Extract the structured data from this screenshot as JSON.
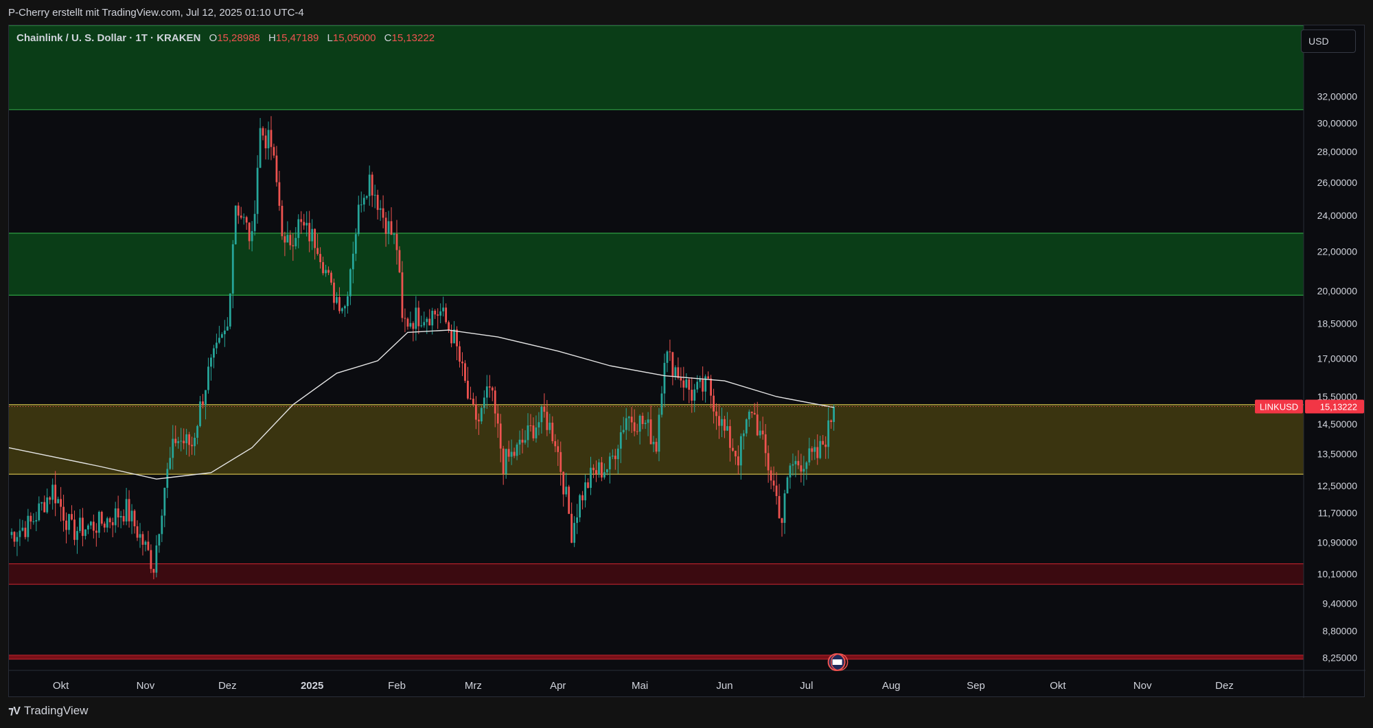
{
  "header": {
    "attribution": "P-Cherry erstellt mit TradingView.com, Jul 12, 2025 01:10 UTC-4"
  },
  "legend": {
    "symbol": "Chainlink / U. S. Dollar · 1T · KRAKEN",
    "open_label": "O",
    "open": "15,28988",
    "high_label": "H",
    "high": "15,47189",
    "low_label": "L",
    "low": "15,05000",
    "close_label": "C",
    "close": "15,13222"
  },
  "currency_button": "USD",
  "price_tag": {
    "ticker": "LINKUSD",
    "value": "15,13222"
  },
  "footer": {
    "brand": "TradingView",
    "logo_icon": "tradingview-logo-icon"
  },
  "event_icon": "us-flag-economic-event-icon",
  "colors": {
    "up": "#26a69a",
    "down": "#ef5350",
    "ma": "#e6e6e6",
    "zone_green": "#0a3d17",
    "zone_yellow": "#3a3410",
    "zone_red": "#3b0a10"
  },
  "chart_data": {
    "type": "candlestick",
    "symbol": "LINKUSD",
    "timeframe": "1T",
    "exchange": "KRAKEN",
    "y_scale": "log",
    "ylim": [
      8.0,
      38.0
    ],
    "y_ticks": [
      "32,00000",
      "30,00000",
      "28,00000",
      "26,00000",
      "24,00000",
      "22,00000",
      "20,00000",
      "18,50000",
      "17,00000",
      "15,50000",
      "14,50000",
      "13,50000",
      "12,50000",
      "11,70000",
      "10,90000",
      "10,10000",
      "9,40000",
      "8,80000",
      "8,25000"
    ],
    "y_tick_values": [
      32,
      30,
      28,
      26,
      24,
      22,
      20,
      18.5,
      17,
      15.5,
      14.5,
      13.5,
      12.5,
      11.7,
      10.9,
      10.1,
      9.4,
      8.8,
      8.25
    ],
    "x_ticks": [
      {
        "label": "Okt",
        "date": "2024-10-01"
      },
      {
        "label": "Nov",
        "date": "2024-11-01"
      },
      {
        "label": "Dez",
        "date": "2024-12-01"
      },
      {
        "label": "2025",
        "date": "2025-01-01",
        "bold": true
      },
      {
        "label": "Feb",
        "date": "2025-02-01"
      },
      {
        "label": "Mrz",
        "date": "2025-03-01"
      },
      {
        "label": "Apr",
        "date": "2025-04-01"
      },
      {
        "label": "Mai",
        "date": "2025-05-01"
      },
      {
        "label": "Jun",
        "date": "2025-06-01"
      },
      {
        "label": "Jul",
        "date": "2025-07-01"
      },
      {
        "label": "Aug",
        "date": "2025-08-01"
      },
      {
        "label": "Sep",
        "date": "2025-09-01"
      },
      {
        "label": "Okt",
        "date": "2025-10-01"
      },
      {
        "label": "Nov",
        "date": "2025-11-01"
      },
      {
        "label": "Dez",
        "date": "2025-12-01"
      }
    ],
    "x_range": [
      "2024-09-12",
      "2025-12-30"
    ],
    "zones": [
      {
        "name": "green-zone-top",
        "from": 31.0,
        "to": 38.0,
        "color": "#0a3d17",
        "border": "#2ea043"
      },
      {
        "name": "green-zone-mid",
        "from": 19.8,
        "to": 23.0,
        "color": "#0a3d17",
        "border": "#2ea043"
      },
      {
        "name": "yellow-zone",
        "from": 12.85,
        "to": 15.2,
        "color": "#3a3410",
        "border": "#c9b74a"
      },
      {
        "name": "red-zone-low",
        "from": 9.85,
        "to": 10.35,
        "color": "#3b0a10",
        "border": "#b0202a"
      },
      {
        "name": "red-line-bottom",
        "from": 8.22,
        "to": 8.3,
        "color": "#7a1018",
        "border": "#b0202a"
      }
    ],
    "close_anchors": [
      [
        "2024-09-12",
        11.1
      ],
      [
        "2024-09-20",
        11.4
      ],
      [
        "2024-09-28",
        12.4
      ],
      [
        "2024-10-05",
        11.2
      ],
      [
        "2024-10-15",
        11.4
      ],
      [
        "2024-10-25",
        11.8
      ],
      [
        "2024-11-04",
        10.3
      ],
      [
        "2024-11-08",
        12.5
      ],
      [
        "2024-11-12",
        14.0
      ],
      [
        "2024-11-18",
        13.8
      ],
      [
        "2024-11-24",
        16.4
      ],
      [
        "2024-12-01",
        18.3
      ],
      [
        "2024-12-04",
        24.8
      ],
      [
        "2024-12-10",
        22.5
      ],
      [
        "2024-12-13",
        29.5
      ],
      [
        "2024-12-17",
        28.4
      ],
      [
        "2024-12-22",
        22.1
      ],
      [
        "2024-12-27",
        23.5
      ],
      [
        "2025-01-03",
        22.5
      ],
      [
        "2025-01-08",
        20.0
      ],
      [
        "2025-01-13",
        19.3
      ],
      [
        "2025-01-19",
        25.2
      ],
      [
        "2025-01-22",
        26.3
      ],
      [
        "2025-01-27",
        24.0
      ],
      [
        "2025-02-01",
        22.3
      ],
      [
        "2025-02-03",
        18.5
      ],
      [
        "2025-02-10",
        18.9
      ],
      [
        "2025-02-17",
        19.0
      ],
      [
        "2025-02-22",
        17.8
      ],
      [
        "2025-02-28",
        15.0
      ],
      [
        "2025-03-03",
        14.6
      ],
      [
        "2025-03-07",
        15.8
      ],
      [
        "2025-03-12",
        13.2
      ],
      [
        "2025-03-17",
        13.6
      ],
      [
        "2025-03-23",
        14.4
      ],
      [
        "2025-03-27",
        14.8
      ],
      [
        "2025-03-31",
        14.0
      ],
      [
        "2025-04-06",
        11.2
      ],
      [
        "2025-04-09",
        12.1
      ],
      [
        "2025-04-14",
        12.9
      ],
      [
        "2025-04-20",
        13.1
      ],
      [
        "2025-04-26",
        14.8
      ],
      [
        "2025-05-03",
        14.5
      ],
      [
        "2025-05-07",
        13.8
      ],
      [
        "2025-05-10",
        17.2
      ],
      [
        "2025-05-14",
        16.6
      ],
      [
        "2025-05-20",
        15.6
      ],
      [
        "2025-05-26",
        15.9
      ],
      [
        "2025-06-01",
        14.2
      ],
      [
        "2025-06-06",
        13.4
      ],
      [
        "2025-06-11",
        15.1
      ],
      [
        "2025-06-17",
        13.1
      ],
      [
        "2025-06-22",
        11.5
      ],
      [
        "2025-06-25",
        13.1
      ],
      [
        "2025-06-30",
        13.3
      ],
      [
        "2025-07-05",
        13.4
      ],
      [
        "2025-07-09",
        14.3
      ],
      [
        "2025-07-11",
        15.13
      ]
    ],
    "moving_average": [
      [
        "2024-09-12",
        13.7
      ],
      [
        "2024-10-15",
        13.1
      ],
      [
        "2024-11-05",
        12.7
      ],
      [
        "2024-11-25",
        12.9
      ],
      [
        "2024-12-10",
        13.7
      ],
      [
        "2024-12-25",
        15.2
      ],
      [
        "2025-01-10",
        16.4
      ],
      [
        "2025-01-25",
        16.9
      ],
      [
        "2025-02-05",
        18.1
      ],
      [
        "2025-02-20",
        18.2
      ],
      [
        "2025-03-10",
        17.9
      ],
      [
        "2025-04-01",
        17.3
      ],
      [
        "2025-04-20",
        16.7
      ],
      [
        "2025-05-10",
        16.3
      ],
      [
        "2025-06-01",
        16.1
      ],
      [
        "2025-06-20",
        15.5
      ],
      [
        "2025-07-11",
        15.1
      ]
    ],
    "last_price": 15.13222
  }
}
